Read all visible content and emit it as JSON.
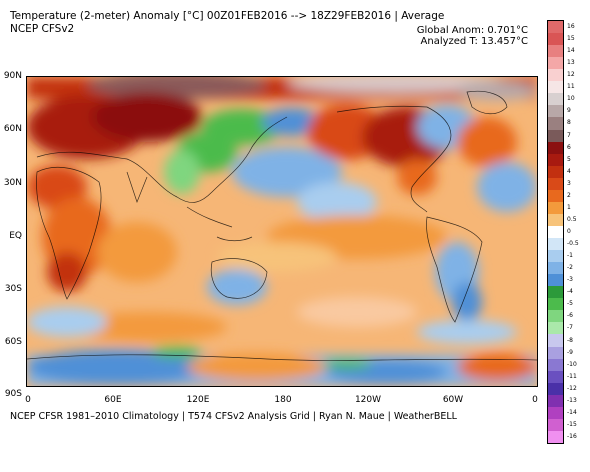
{
  "header": {
    "title": "Temperature (2-meter) Anomaly   [°C] 00Z01FEB2016 --> 18Z29FEB2016 | Average",
    "subtitle": "NCEP CFSv2",
    "global_anom": "Global Anom: 0.701°C",
    "analyzed_t": "Analyzed T: 13.457°C"
  },
  "footer": "NCEP CFSR 1981–2010 Climatology | T574 CFSv2 Analysis Grid | Ryan N. Maue | WeatherBELL",
  "axes": {
    "lat_labels": [
      "90N",
      "60N",
      "30N",
      "EQ",
      "30S",
      "60S",
      "90S"
    ],
    "lon_labels": [
      "0",
      "60E",
      "120E",
      "180",
      "120W",
      "60W",
      "0"
    ]
  },
  "colorbar": {
    "labels": [
      "16",
      "15",
      "14",
      "13",
      "12",
      "11",
      "10",
      "9",
      "8",
      "7",
      "6",
      "5",
      "4",
      "3",
      "2",
      "1",
      "0.5",
      "0",
      "-0.5",
      "-1",
      "-2",
      "-3",
      "-4",
      "-5",
      "-6",
      "-7",
      "-8",
      "-9",
      "-10",
      "-11",
      "-12",
      "-13",
      "-14",
      "-15",
      "-16"
    ],
    "colors": [
      "#e06a6a",
      "#d95555",
      "#e88080",
      "#f4a7a7",
      "#f9d0d0",
      "#f6e6e6",
      "#d8d0d0",
      "#b8a8a8",
      "#9a8080",
      "#7a5a5a",
      "#8b1010",
      "#a81a10",
      "#c23010",
      "#d94a18",
      "#e8691e",
      "#f39a3c",
      "#f7c37a",
      "#ffffff",
      "#d2e6f7",
      "#a9cdef",
      "#7fb2e6",
      "#4f90d7",
      "#2c9a3a",
      "#4cbb4c",
      "#7fd67f",
      "#aae8aa",
      "#c8c8ee",
      "#a9a0e0",
      "#8a78d2",
      "#6a50c0",
      "#4a30a8",
      "#8030b0",
      "#b040c0",
      "#d060d0",
      "#f090f0"
    ]
  }
}
